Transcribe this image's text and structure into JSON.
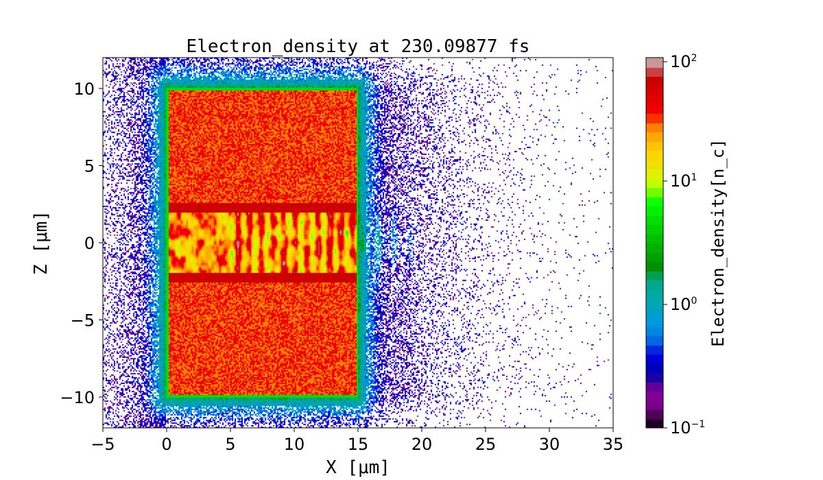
{
  "chart_data": {
    "type": "heatmap",
    "title": "Electron_density at 230.09877 fs",
    "xlabel": "X [μm]",
    "ylabel": "Z [μm]",
    "xlim": [
      -5,
      35
    ],
    "ylim": [
      -12,
      12
    ],
    "xticks": [
      -5,
      0,
      5,
      10,
      15,
      20,
      25,
      30,
      35
    ],
    "xtick_labels": [
      "−5",
      "0",
      "5",
      "10",
      "15",
      "20",
      "25",
      "30",
      "35"
    ],
    "yticks": [
      -10,
      -5,
      0,
      5,
      10
    ],
    "ytick_labels": [
      "−10",
      "−5",
      "0",
      "5",
      "10"
    ],
    "grid": false,
    "colorbar": {
      "label": "Electron_density[n_c]",
      "scale": "log",
      "range": [
        0.1,
        100
      ],
      "ticks": [
        0.1,
        1,
        10,
        100
      ],
      "tick_labels": [
        {
          "base": "10",
          "exp": "−1"
        },
        {
          "base": "10",
          "exp": "0"
        },
        {
          "base": "10",
          "exp": "1"
        },
        {
          "base": "10",
          "exp": "2"
        }
      ],
      "colors": [
        "#200020",
        "#500058",
        "#780088",
        "#800098",
        "#600098",
        "#1800a8",
        "#0000b8",
        "#0000d8",
        "#0028e0",
        "#0068e0",
        "#0088e0",
        "#0098e0",
        "#00a0c8",
        "#00a8b0",
        "#00aaa0",
        "#00a890",
        "#00a050",
        "#009000",
        "#00a000",
        "#00b000",
        "#00c000",
        "#00d000",
        "#00e000",
        "#00f000",
        "#10ff00",
        "#70ff00",
        "#c0ff00",
        "#e0f000",
        "#f0e000",
        "#f8d800",
        "#ffc400",
        "#ffa800",
        "#ff8000",
        "#ff3000",
        "#f00000",
        "#e40000",
        "#d80000",
        "#cc0000",
        "#c84040",
        "#c89898"
      ]
    },
    "target_region": {
      "x": [
        0,
        15
      ],
      "z": [
        -10,
        10
      ]
    },
    "channel_region": {
      "z": [
        -2.5,
        2.5
      ]
    }
  }
}
